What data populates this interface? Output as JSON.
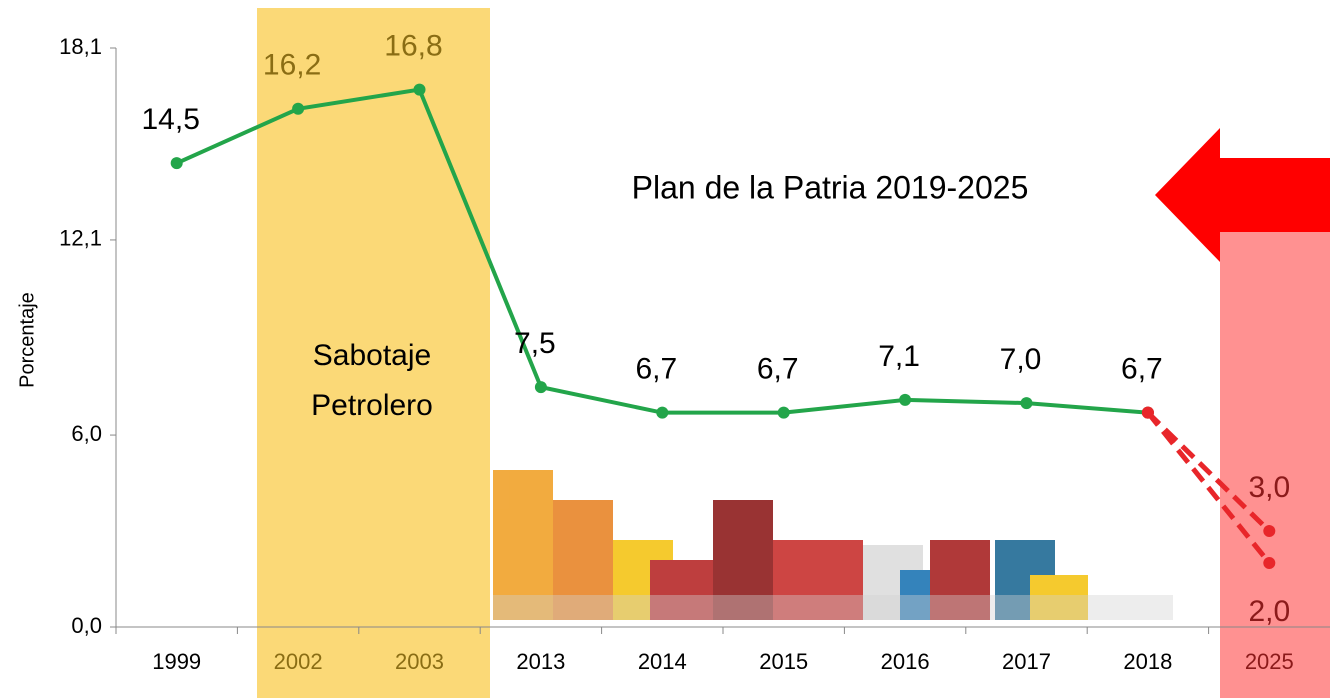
{
  "chart_data": {
    "type": "line",
    "y_label": "Porcentaje",
    "annotations": [
      "Sabotaje",
      "Petrolero",
      "Plan de la Patria 2019-2025"
    ],
    "categories": [
      "1999",
      "2002",
      "2003",
      "2013",
      "2014",
      "2015",
      "2016",
      "2017",
      "2018",
      "2025"
    ],
    "series": [
      {
        "color": "#23a54a",
        "dash": false,
        "values": [
          14.5,
          16.2,
          16.8,
          7.5,
          6.7,
          6.7,
          7.1,
          7.0,
          6.7,
          null
        ],
        "value_labels": [
          "14,5",
          "16,2",
          "16,8",
          "7,5",
          "6,7",
          "6,7",
          "7,1",
          "7,0",
          "6,7",
          null
        ]
      },
      {
        "color": "#e8262a",
        "dash": true,
        "values": [
          null,
          null,
          null,
          null,
          null,
          null,
          null,
          null,
          6.7,
          3.0
        ],
        "value_labels": [
          null,
          null,
          null,
          null,
          null,
          null,
          null,
          null,
          null,
          "3,0"
        ]
      },
      {
        "color": "#e8262a",
        "dash": true,
        "values": [
          null,
          null,
          null,
          null,
          null,
          null,
          null,
          null,
          6.7,
          2.0
        ],
        "value_labels": [
          null,
          null,
          null,
          null,
          null,
          null,
          null,
          null,
          null,
          "2,0"
        ]
      }
    ],
    "ylim": [
      0,
      18.1
    ],
    "yticks": [
      {
        "value": 0,
        "label": "0,0"
      },
      {
        "value": 6.0,
        "label": "6,0"
      },
      {
        "value": 12.1,
        "label": "12,1"
      },
      {
        "value": 18.1,
        "label": "18,1"
      }
    ]
  }
}
